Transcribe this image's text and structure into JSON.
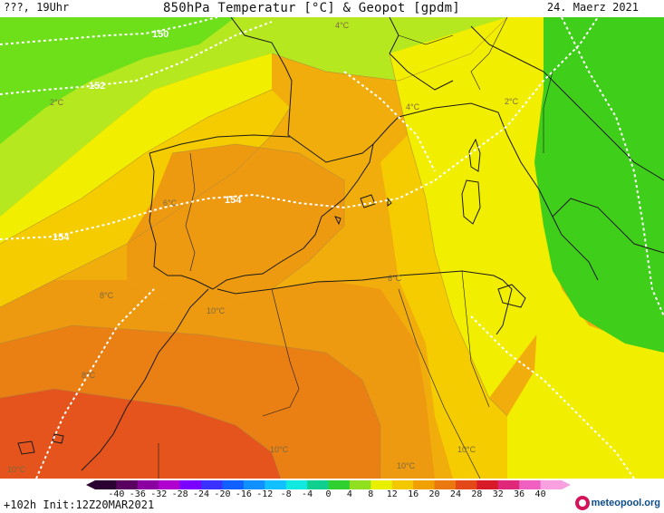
{
  "header": {
    "left_text": "???, 19Uhr",
    "title": "850hPa Temperatur [°C] & Geopot [gpdm]",
    "date": "24. Maerz 2021"
  },
  "map": {
    "geopotential_labels": [
      "150",
      "152",
      "154",
      "154"
    ],
    "isotherm_labels": [
      "4°C",
      "2°C",
      "4°C",
      "2°C",
      "6°C",
      "6°C",
      "8°C",
      "8°C",
      "10°C",
      "10°C",
      "10°C",
      "10°C",
      "10°C"
    ],
    "colors": {
      "green": "#3fcf1a",
      "yellow_green": "#b6e81f",
      "yellow": "#f2ee00",
      "yellow_orange": "#f4cc00",
      "orange_light": "#f1ad0c",
      "orange": "#ee9a10",
      "orange_dark": "#ea7f14",
      "red_orange": "#e4541c"
    }
  },
  "colorbar": {
    "ticks": [
      "-40",
      "-36",
      "-32",
      "-28",
      "-24",
      "-20",
      "-16",
      "-12",
      "-8",
      "-4",
      "0",
      "4",
      "8",
      "12",
      "16",
      "20",
      "24",
      "28",
      "32",
      "36",
      "40"
    ],
    "colors": [
      "#2a0030",
      "#5a0060",
      "#8a00a0",
      "#b000d0",
      "#7a00ff",
      "#3a30ff",
      "#1060ff",
      "#1090ff",
      "#10c0ff",
      "#10e8e0",
      "#10d090",
      "#30d030",
      "#90e020",
      "#e8f000",
      "#f4c800",
      "#f0a000",
      "#ec7810",
      "#e44818",
      "#d81a28",
      "#e0287a",
      "#f060c0",
      "#f8a0e0"
    ]
  },
  "footer": {
    "init_text": "+102h  Init:12Z20MAR2021",
    "logo_text": "meteopool.org"
  }
}
